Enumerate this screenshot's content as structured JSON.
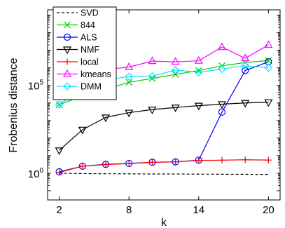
{
  "chart_data": {
    "type": "line",
    "title": "",
    "xlabel": "k",
    "ylabel": "Frobenius distance",
    "yscale": "log",
    "xlim": [
      1,
      21
    ],
    "ylim": [
      0.03,
      2000000000
    ],
    "xticks": [
      2,
      8,
      14,
      20
    ],
    "xtick_labels": [
      "2",
      "8",
      "14",
      "20"
    ],
    "yticks": [
      1,
      100000
    ],
    "ytick_labels": [
      {
        "base": "10",
        "exp": "0"
      },
      {
        "base": "10",
        "exp": "5"
      }
    ],
    "grid": false,
    "legend_position": "top-left",
    "x": [
      2,
      4,
      6,
      8,
      10,
      12,
      14,
      16,
      18,
      20
    ],
    "series": [
      {
        "name": "SVD",
        "color": "#000000",
        "marker": "none",
        "dash": true,
        "values": [
          1.0,
          0.95,
          0.93,
          0.92,
          0.9,
          0.9,
          0.88,
          0.87,
          0.86,
          0.85
        ]
      },
      {
        "name": "844",
        "color": "#00cc00",
        "marker": "x",
        "values": [
          8000,
          25000,
          60000,
          150000,
          250000,
          420000,
          700000,
          1300000,
          2000000,
          2600000
        ]
      },
      {
        "name": "ALS",
        "color": "#0000ff",
        "marker": "circle",
        "values": [
          1.2,
          2.5,
          3.2,
          3.6,
          4.2,
          4.4,
          5.5,
          3000,
          700000,
          2200000
        ]
      },
      {
        "name": "NMF",
        "color": "#000000",
        "marker": "triangle-down",
        "values": [
          20,
          300,
          1500,
          2800,
          4200,
          5500,
          7000,
          8500,
          10000,
          11000
        ]
      },
      {
        "name": "local",
        "color": "#ff0000",
        "marker": "plus",
        "values": [
          1.1,
          2.5,
          3.1,
          3.5,
          4.2,
          4.4,
          5.3,
          5.5,
          5.8,
          5.6
        ]
      },
      {
        "name": "kmeans",
        "color": "#ff00ff",
        "marker": "triangle-up",
        "values": [
          100000,
          1200000,
          800000,
          1100000,
          2400000,
          2200000,
          2500000,
          15000000,
          3500000,
          20000000
        ]
      },
      {
        "name": "DMM",
        "color": "#00e5ff",
        "marker": "diamond",
        "values": [
          8000,
          60000,
          200000,
          320000,
          330000,
          750000,
          550000,
          850000,
          1300000,
          1000000
        ]
      }
    ]
  }
}
